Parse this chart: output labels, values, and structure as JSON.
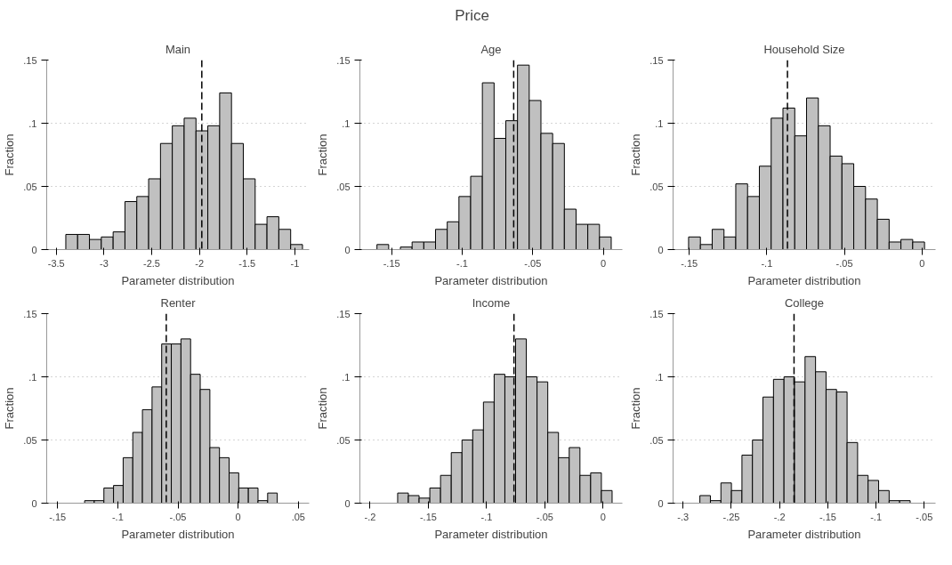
{
  "chart_data": [
    {
      "type": "other",
      "title": "Price"
    },
    {
      "type": "histogram",
      "title": "Main",
      "xlabel": "Parameter distribution",
      "ylabel": "Fraction",
      "color": "#c0c0c0",
      "bins": [
        -3.4,
        -3.276,
        -3.152,
        -3.028,
        -2.904,
        -2.78,
        -2.656,
        -2.532,
        -2.408,
        -2.284,
        -2.16,
        -2.036,
        -1.912,
        -1.788,
        -1.664,
        -1.54,
        -1.416,
        -1.292,
        -1.168,
        -1.044,
        -0.92
      ],
      "values": [
        0.012,
        0.012,
        0.008,
        0.01,
        0.014,
        0.038,
        0.042,
        0.056,
        0.084,
        0.098,
        0.104,
        0.094,
        0.098,
        0.124,
        0.084,
        0.056,
        0.02,
        0.026,
        0.016,
        0.004
      ],
      "xlim": [
        -3.6,
        -0.85
      ],
      "ylim": [
        0,
        0.15
      ],
      "xticks": [
        -3.5,
        -3,
        -2.5,
        -2,
        -1.5,
        -1
      ],
      "yticks": [
        {
          "value": 0,
          "label": "0"
        },
        {
          "value": 0.05,
          "label": ".05"
        },
        {
          "value": 0.1,
          "label": ".1"
        },
        {
          "value": 0.15,
          "label": ".15"
        }
      ],
      "grid": "y",
      "ref_lines": [
        {
          "axis": "x",
          "value": -1.975,
          "color": "#000000",
          "line_style": "dashed"
        }
      ]
    },
    {
      "type": "histogram",
      "title": "Age",
      "xlabel": "Parameter distribution",
      "ylabel": "Fraction",
      "color": "#c0c0c0",
      "bins": [
        -0.1604,
        -0.1521,
        -0.1438,
        -0.1355,
        -0.1272,
        -0.1189,
        -0.1106,
        -0.1023,
        -0.094,
        -0.0857,
        -0.0774,
        -0.0691,
        -0.0608,
        -0.0525,
        -0.0442,
        -0.0359,
        -0.0276,
        -0.0193,
        -0.011,
        -0.0027,
        0.0056
      ],
      "values": [
        0.004,
        null,
        0.002,
        0.006,
        0.006,
        0.016,
        0.022,
        0.042,
        0.058,
        0.132,
        0.088,
        0.102,
        0.146,
        0.118,
        0.092,
        0.084,
        0.032,
        0.02,
        0.02,
        0.01
      ],
      "xlim": [
        -0.1725,
        0.0135
      ],
      "ylim": [
        0,
        0.15
      ],
      "xticks": [
        {
          "value": -0.15,
          "label": "-.15"
        },
        {
          "value": -0.1,
          "label": "-.1"
        },
        {
          "value": -0.05,
          "label": "-.05"
        },
        {
          "value": 0,
          "label": "0"
        }
      ],
      "yticks": [
        {
          "value": 0,
          "label": "0"
        },
        {
          "value": 0.05,
          "label": ".05"
        },
        {
          "value": 0.1,
          "label": ".1"
        },
        {
          "value": 0.15,
          "label": ".15"
        }
      ],
      "grid": "y",
      "ref_lines": [
        {
          "axis": "x",
          "value": -0.0635,
          "color": "#000000",
          "line_style": "dashed"
        }
      ]
    },
    {
      "type": "histogram",
      "title": "Household Size",
      "xlabel": "Parameter distribution",
      "ylabel": "Fraction",
      "color": "#c0c0c0",
      "bins": [
        -0.1504,
        -0.1428,
        -0.1352,
        -0.1276,
        -0.12,
        -0.1124,
        -0.1048,
        -0.0972,
        -0.0896,
        -0.082,
        -0.0744,
        -0.0668,
        -0.0592,
        -0.0516,
        -0.044,
        -0.0364,
        -0.0288,
        -0.0212,
        -0.0136,
        -0.006,
        0.0016
      ],
      "values": [
        0.01,
        0.004,
        0.016,
        0.01,
        0.052,
        0.042,
        0.066,
        0.104,
        0.112,
        0.09,
        0.12,
        0.098,
        0.074,
        0.068,
        0.05,
        0.04,
        0.024,
        0.006,
        0.008,
        0.006
      ],
      "xlim": [
        -0.1604,
        0.0087
      ],
      "ylim": [
        0,
        0.15
      ],
      "xticks": [
        {
          "value": -0.15,
          "label": "-.15"
        },
        {
          "value": -0.1,
          "label": "-.1"
        },
        {
          "value": -0.05,
          "label": "-.05"
        },
        {
          "value": 0,
          "label": "0"
        }
      ],
      "yticks": [
        {
          "value": 0,
          "label": "0"
        },
        {
          "value": 0.05,
          "label": ".05"
        },
        {
          "value": 0.1,
          "label": ".1"
        },
        {
          "value": 0.15,
          "label": ".15"
        }
      ],
      "grid": "y",
      "ref_lines": [
        {
          "axis": "x",
          "value": -0.0867,
          "color": "#000000",
          "line_style": "dashed"
        }
      ]
    },
    {
      "type": "histogram",
      "title": "Renter",
      "xlabel": "Parameter distribution",
      "ylabel": "Fraction",
      "color": "#c0c0c0",
      "bins": [
        -0.1275,
        -0.1195,
        -0.1115,
        -0.1035,
        -0.0955,
        -0.0875,
        -0.0795,
        -0.0715,
        -0.0635,
        -0.0555,
        -0.0475,
        -0.0395,
        -0.0315,
        -0.0235,
        -0.0155,
        -0.0075,
        0.0005,
        0.0085,
        0.0165,
        0.0245,
        0.0325
      ],
      "values": [
        0.002,
        0.002,
        0.012,
        0.014,
        0.036,
        0.056,
        0.074,
        0.092,
        0.126,
        0.126,
        0.13,
        0.102,
        0.09,
        0.044,
        0.036,
        0.024,
        0.012,
        0.012,
        0.002,
        0.008
      ],
      "xlim": [
        -0.159,
        0.059
      ],
      "ylim": [
        0,
        0.15
      ],
      "xticks": [
        {
          "value": -0.15,
          "label": "-.15"
        },
        {
          "value": -0.1,
          "label": "-.1"
        },
        {
          "value": -0.05,
          "label": "-.05"
        },
        {
          "value": 0,
          "label": "0"
        },
        {
          "value": 0.05,
          "label": ".05"
        }
      ],
      "yticks": [
        {
          "value": 0,
          "label": "0"
        },
        {
          "value": 0.05,
          "label": ".05"
        },
        {
          "value": 0.1,
          "label": ".1"
        },
        {
          "value": 0.15,
          "label": ".15"
        }
      ],
      "grid": "y",
      "ref_lines": [
        {
          "axis": "x",
          "value": -0.0597,
          "color": "#000000",
          "line_style": "dashed"
        }
      ]
    },
    {
      "type": "histogram",
      "title": "Income",
      "xlabel": "Parameter distribution",
      "ylabel": "Fraction",
      "color": "#c0c0c0",
      "bins": [
        -0.1763,
        -0.1671,
        -0.1579,
        -0.1487,
        -0.1395,
        -0.1303,
        -0.1211,
        -0.1119,
        -0.1027,
        -0.0935,
        -0.0843,
        -0.0751,
        -0.0659,
        -0.0567,
        -0.0475,
        -0.0383,
        -0.0291,
        -0.0199,
        -0.0107,
        -0.0015,
        0.0077
      ],
      "values": [
        0.008,
        0.006,
        0.004,
        0.012,
        0.022,
        0.04,
        0.05,
        0.058,
        0.08,
        0.102,
        0.1,
        0.13,
        0.1,
        0.096,
        0.056,
        0.036,
        0.044,
        0.022,
        0.024,
        0.01
      ],
      "xlim": [
        -0.2087,
        0.0165
      ],
      "ylim": [
        0,
        0.15
      ],
      "xticks": [
        {
          "value": -0.2,
          "label": "-.2"
        },
        {
          "value": -0.15,
          "label": "-.15"
        },
        {
          "value": -0.1,
          "label": "-.1"
        },
        {
          "value": -0.05,
          "label": "-.05"
        },
        {
          "value": 0,
          "label": "0"
        }
      ],
      "yticks": [
        {
          "value": 0,
          "label": "0"
        },
        {
          "value": 0.05,
          "label": ".05"
        },
        {
          "value": 0.1,
          "label": ".1"
        },
        {
          "value": 0.15,
          "label": ".15"
        }
      ],
      "grid": "y",
      "ref_lines": [
        {
          "axis": "x",
          "value": -0.0765,
          "color": "#000000",
          "line_style": "dashed"
        }
      ]
    },
    {
      "type": "histogram",
      "title": "College",
      "xlabel": "Parameter distribution",
      "ylabel": "Fraction",
      "color": "#c0c0c0",
      "bins": [
        -0.2826,
        -0.2717,
        -0.2608,
        -0.2499,
        -0.239,
        -0.2281,
        -0.2172,
        -0.2063,
        -0.1954,
        -0.1845,
        -0.1736,
        -0.1627,
        -0.1518,
        -0.1409,
        -0.13,
        -0.1191,
        -0.1082,
        -0.0973,
        -0.0864,
        -0.0755,
        -0.0646
      ],
      "values": [
        0.006,
        0.002,
        0.016,
        0.01,
        0.038,
        0.05,
        0.084,
        0.098,
        0.1,
        0.096,
        0.116,
        0.104,
        0.09,
        0.088,
        0.048,
        0.022,
        0.018,
        0.01,
        0.002,
        0.002
      ],
      "xlim": [
        -0.3104,
        -0.0383
      ],
      "ylim": [
        0,
        0.15
      ],
      "xticks": [
        {
          "value": -0.3,
          "label": "-.3"
        },
        {
          "value": -0.25,
          "label": "-.25"
        },
        {
          "value": -0.2,
          "label": "-.2"
        },
        {
          "value": -0.15,
          "label": "-.15"
        },
        {
          "value": -0.1,
          "label": "-.1"
        },
        {
          "value": -0.05,
          "label": "-.05"
        }
      ],
      "yticks": [
        {
          "value": 0,
          "label": "0"
        },
        {
          "value": 0.05,
          "label": ".05"
        },
        {
          "value": 0.1,
          "label": ".1"
        },
        {
          "value": 0.15,
          "label": ".15"
        }
      ],
      "grid": "y",
      "ref_lines": [
        {
          "axis": "x",
          "value": -0.185,
          "color": "#000000",
          "line_style": "dashed"
        }
      ]
    }
  ]
}
